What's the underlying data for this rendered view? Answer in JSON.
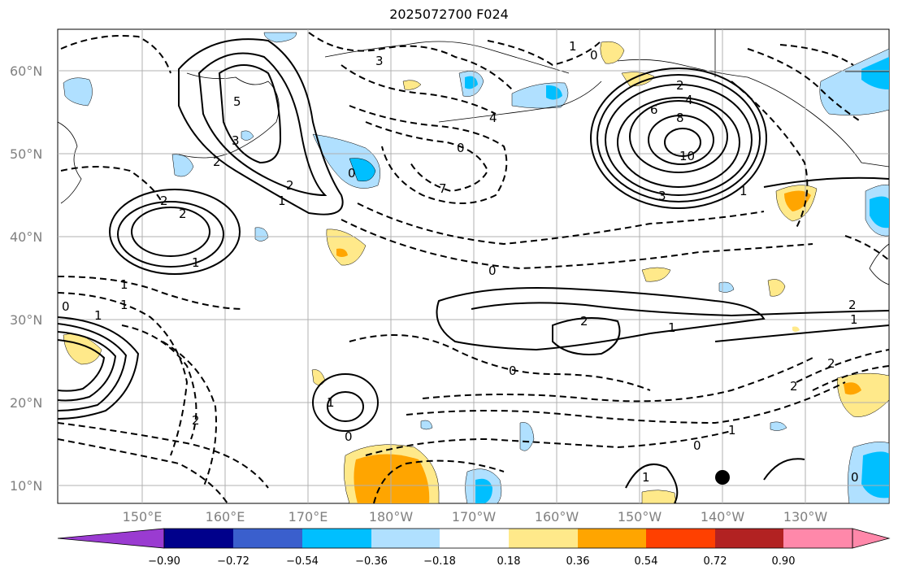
{
  "title": "2025072700 F024",
  "lat_labels": [
    "60°N",
    "50°N",
    "40°N",
    "30°N",
    "20°N",
    "10°N"
  ],
  "lon_labels": [
    "150°E",
    "160°E",
    "170°E",
    "180°W",
    "170°W",
    "160°W",
    "150°W",
    "140°W",
    "130°W"
  ],
  "colorbar": {
    "ticks": [
      "−0.90",
      "−0.72",
      "−0.54",
      "−0.36",
      "−0.18",
      "0.18",
      "0.36",
      "0.54",
      "0.72",
      "0.90"
    ],
    "colors": [
      "#9a3bd1",
      "#00008b",
      "#3a5fcd",
      "#00bfff",
      "#b0e0ff",
      "#ffffff",
      "#ffe98a",
      "#ffa500",
      "#ff4000",
      "#b22222",
      "#ff88aa"
    ]
  },
  "contour_labels": [
    "1",
    "0",
    "3",
    "4",
    "5",
    "7",
    "0",
    "2",
    "4",
    "6",
    "8",
    "10",
    "3",
    "1",
    "2",
    "2",
    "1",
    "3",
    "2",
    "0",
    "1",
    "2",
    "1",
    "0",
    "1",
    "1",
    "0",
    "2",
    "1",
    "2",
    "0",
    "2",
    "1",
    "0",
    "1",
    "0",
    "2",
    "2",
    "1",
    "0",
    "1"
  ],
  "colors": {
    "positive_shade": "#ffe98a",
    "positive_shade_strong": "#ffa500",
    "negative_shade": "#b0e0ff",
    "negative_shade_strong": "#00bfff",
    "grid": "#b0b0b0",
    "coast": "#000000"
  }
}
